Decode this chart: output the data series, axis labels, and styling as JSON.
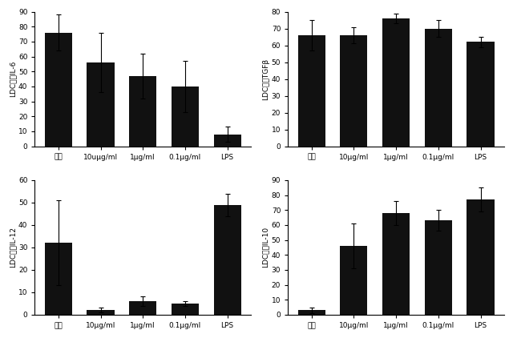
{
  "categories": [
    "基底",
    "10uμg/ml",
    "1μg/ml",
    "0.1μg/ml",
    "LPS"
  ],
  "categories_tgfb": [
    "基底",
    "10μg/ml",
    "1μg/ml",
    "0.1μg/ml",
    "LPS"
  ],
  "il6": {
    "values": [
      76,
      56,
      47,
      40,
      8
    ],
    "errors": [
      12,
      20,
      15,
      17,
      5
    ],
    "ylabel": "LDC内のIL-6",
    "ylim": [
      0,
      90
    ],
    "yticks": [
      0,
      10,
      20,
      30,
      40,
      50,
      60,
      70,
      80,
      90
    ]
  },
  "tgfb": {
    "values": [
      66,
      66,
      76,
      70,
      62
    ],
    "errors": [
      9,
      5,
      3,
      5,
      3
    ],
    "ylabel": "LDC内のTGFβ",
    "ylim": [
      0,
      80
    ],
    "yticks": [
      0,
      10,
      20,
      30,
      40,
      50,
      60,
      70,
      80
    ]
  },
  "il12": {
    "values": [
      32,
      2,
      6,
      5,
      49
    ],
    "errors": [
      19,
      1,
      2,
      1,
      5
    ],
    "ylabel": "LDC内のIL-12",
    "ylim": [
      0,
      60
    ],
    "yticks": [
      0,
      10,
      20,
      30,
      40,
      50,
      60
    ]
  },
  "il10": {
    "values": [
      3,
      46,
      68,
      63,
      77
    ],
    "errors": [
      2,
      15,
      8,
      7,
      8
    ],
    "ylabel": "LDC内のIL-10",
    "ylim": [
      0,
      90
    ],
    "yticks": [
      0,
      10,
      20,
      30,
      40,
      50,
      60,
      70,
      80,
      90
    ]
  },
  "bar_color": "#111111",
  "bg_color": "#f0f0f0",
  "bar_width": 0.65,
  "tick_fontsize": 6.5,
  "label_fontsize": 6.5
}
